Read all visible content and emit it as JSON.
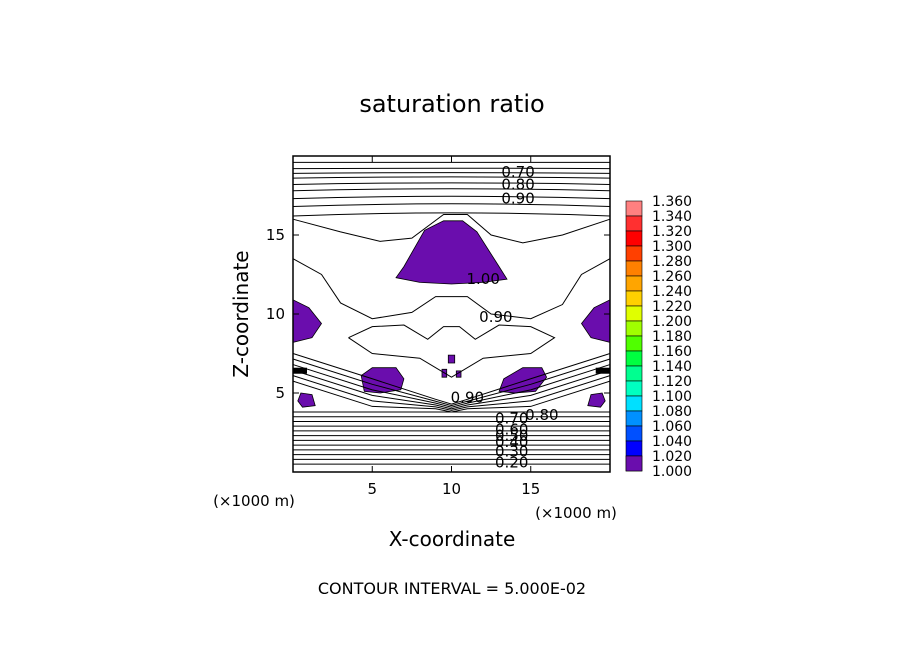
{
  "chart_data": {
    "type": "contour",
    "title": "saturation ratio",
    "xlabel": "X-coordinate",
    "ylabel": "Z-coordinate",
    "xunit": "(×1000 m)",
    "zunit": "(×1000 m)",
    "xlim": [
      0,
      20
    ],
    "ylim": [
      0,
      20
    ],
    "xticks": [
      5,
      10,
      15
    ],
    "yticks": [
      5,
      10,
      15
    ],
    "footer": "CONTOUR INTERVAL = 5.000E-02",
    "contour_labels": [
      {
        "text": "0.70",
        "x": 14.2,
        "z": 19.0
      },
      {
        "text": "0.80",
        "x": 14.2,
        "z": 18.2
      },
      {
        "text": "0.90",
        "x": 14.2,
        "z": 17.3
      },
      {
        "text": "1.00",
        "x": 12.0,
        "z": 12.2
      },
      {
        "text": "0.90",
        "x": 12.8,
        "z": 9.8
      },
      {
        "text": "0.90",
        "x": 11.0,
        "z": 4.7
      },
      {
        "text": "0.70",
        "x": 13.8,
        "z": 3.4
      },
      {
        "text": "0.80",
        "x": 15.7,
        "z": 3.6
      },
      {
        "text": "0.60",
        "x": 13.8,
        "z": 2.7
      },
      {
        "text": "0.50",
        "x": 13.8,
        "z": 2.3
      },
      {
        "text": "0.40",
        "x": 13.8,
        "z": 1.9
      },
      {
        "text": "0.30",
        "x": 13.8,
        "z": 1.3
      },
      {
        "text": "0.20",
        "x": 13.8,
        "z": 0.6
      }
    ],
    "colorbar": {
      "levels": [
        "1.360",
        "1.340",
        "1.320",
        "1.300",
        "1.280",
        "1.260",
        "1.240",
        "1.220",
        "1.200",
        "1.180",
        "1.160",
        "1.140",
        "1.120",
        "1.100",
        "1.080",
        "1.060",
        "1.040",
        "1.020",
        "1.000"
      ],
      "colors": [
        "#ff8080",
        "#ff3030",
        "#ff0000",
        "#ff4000",
        "#ff8000",
        "#ffa500",
        "#ffd000",
        "#e0ff00",
        "#a0ff00",
        "#50ff00",
        "#00ff40",
        "#00ff90",
        "#00ffc0",
        "#00e0ff",
        "#0090ff",
        "#0050ff",
        "#0000ff",
        "#0000a0",
        "#6a0dad"
      ]
    },
    "supersaturated_regions": [
      {
        "name": "upper-cloud",
        "points": [
          [
            6.5,
            12.3
          ],
          [
            7.0,
            13.0
          ],
          [
            8.3,
            15.3
          ],
          [
            9.5,
            15.9
          ],
          [
            10.7,
            15.9
          ],
          [
            11.6,
            15.2
          ],
          [
            13.0,
            13.0
          ],
          [
            13.5,
            12.2
          ],
          [
            12.0,
            12.0
          ],
          [
            10.0,
            11.9
          ],
          [
            8.0,
            12.0
          ]
        ]
      },
      {
        "name": "left-upper-blob",
        "points": [
          [
            0.0,
            10.9
          ],
          [
            1.0,
            10.4
          ],
          [
            1.8,
            9.4
          ],
          [
            1.2,
            8.5
          ],
          [
            0.0,
            8.2
          ]
        ]
      },
      {
        "name": "right-upper-blob",
        "points": [
          [
            20.0,
            10.9
          ],
          [
            19.0,
            10.4
          ],
          [
            18.2,
            9.4
          ],
          [
            18.8,
            8.5
          ],
          [
            20.0,
            8.2
          ]
        ]
      },
      {
        "name": "left-mid-blob",
        "points": [
          [
            4.3,
            6.1
          ],
          [
            5.0,
            6.6
          ],
          [
            6.5,
            6.6
          ],
          [
            7.0,
            5.9
          ],
          [
            6.8,
            5.2
          ],
          [
            5.5,
            5.0
          ],
          [
            4.5,
            5.1
          ]
        ]
      },
      {
        "name": "right-mid-blob",
        "points": [
          [
            13.0,
            5.1
          ],
          [
            13.3,
            5.9
          ],
          [
            14.5,
            6.6
          ],
          [
            15.7,
            6.6
          ],
          [
            16.0,
            6.0
          ],
          [
            15.3,
            5.1
          ],
          [
            14.0,
            5.0
          ]
        ]
      },
      {
        "name": "left-lower-blob",
        "points": [
          [
            0.5,
            5.0
          ],
          [
            1.2,
            4.9
          ],
          [
            1.4,
            4.2
          ],
          [
            0.6,
            4.1
          ],
          [
            0.3,
            4.5
          ]
        ]
      },
      {
        "name": "right-lower-blob",
        "points": [
          [
            19.5,
            5.0
          ],
          [
            18.8,
            4.9
          ],
          [
            18.6,
            4.2
          ],
          [
            19.4,
            4.1
          ],
          [
            19.7,
            4.5
          ]
        ]
      },
      {
        "name": "center-spot-upper",
        "points": [
          [
            9.8,
            7.4
          ],
          [
            10.2,
            7.4
          ],
          [
            10.2,
            6.9
          ],
          [
            9.8,
            6.9
          ]
        ]
      },
      {
        "name": "center-spot-mid",
        "points": [
          [
            9.4,
            6.5
          ],
          [
            9.7,
            6.5
          ],
          [
            9.7,
            6.0
          ],
          [
            9.4,
            6.0
          ]
        ]
      },
      {
        "name": "center-spot-mid2",
        "points": [
          [
            10.3,
            6.4
          ],
          [
            10.6,
            6.4
          ],
          [
            10.6,
            6.0
          ],
          [
            10.3,
            6.0
          ]
        ]
      }
    ]
  }
}
